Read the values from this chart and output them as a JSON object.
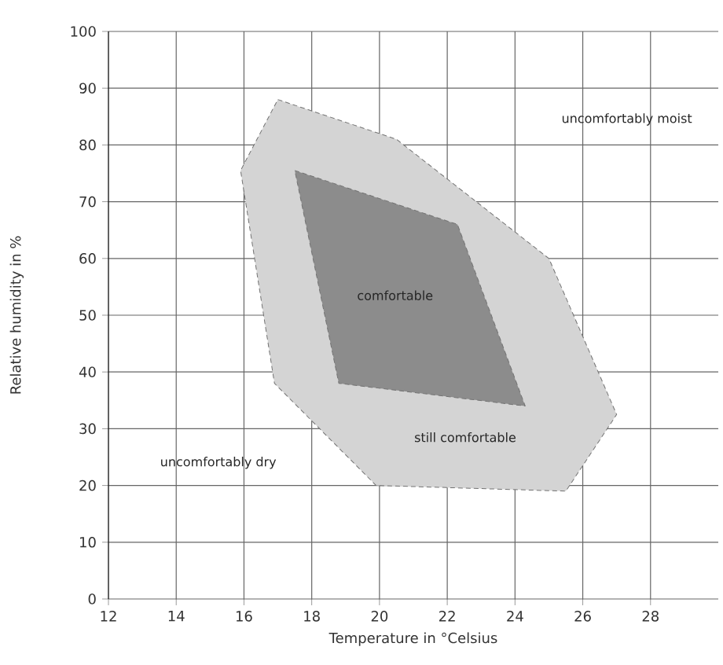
{
  "chart_data": {
    "type": "area",
    "xlabel": "Temperature in °Celsius",
    "ylabel": "Relative humidity in %",
    "xlim": [
      12,
      30
    ],
    "xticks": [
      12,
      14,
      16,
      18,
      20,
      22,
      24,
      26,
      28
    ],
    "ylim": [
      0,
      100
    ],
    "yticks": [
      0,
      10,
      20,
      30,
      40,
      50,
      60,
      70,
      80,
      90,
      100
    ],
    "grid": true,
    "series": [
      {
        "color": "#d4d4d4",
        "x": [
          17,
          20.5,
          25,
          27,
          25.5,
          19.9,
          16.9,
          15.9
        ],
        "values": [
          88,
          81,
          60,
          32.5,
          19,
          20,
          38,
          75.5
        ]
      },
      {
        "color": "#8c8c8c",
        "x": [
          17.5,
          22.3,
          24.3,
          18.8
        ],
        "values": [
          75.5,
          66,
          34,
          38
        ]
      }
    ],
    "annotations": [
      "uncomfortably moist",
      "comfortable",
      "still comfortable",
      "uncomfortably dry"
    ]
  }
}
